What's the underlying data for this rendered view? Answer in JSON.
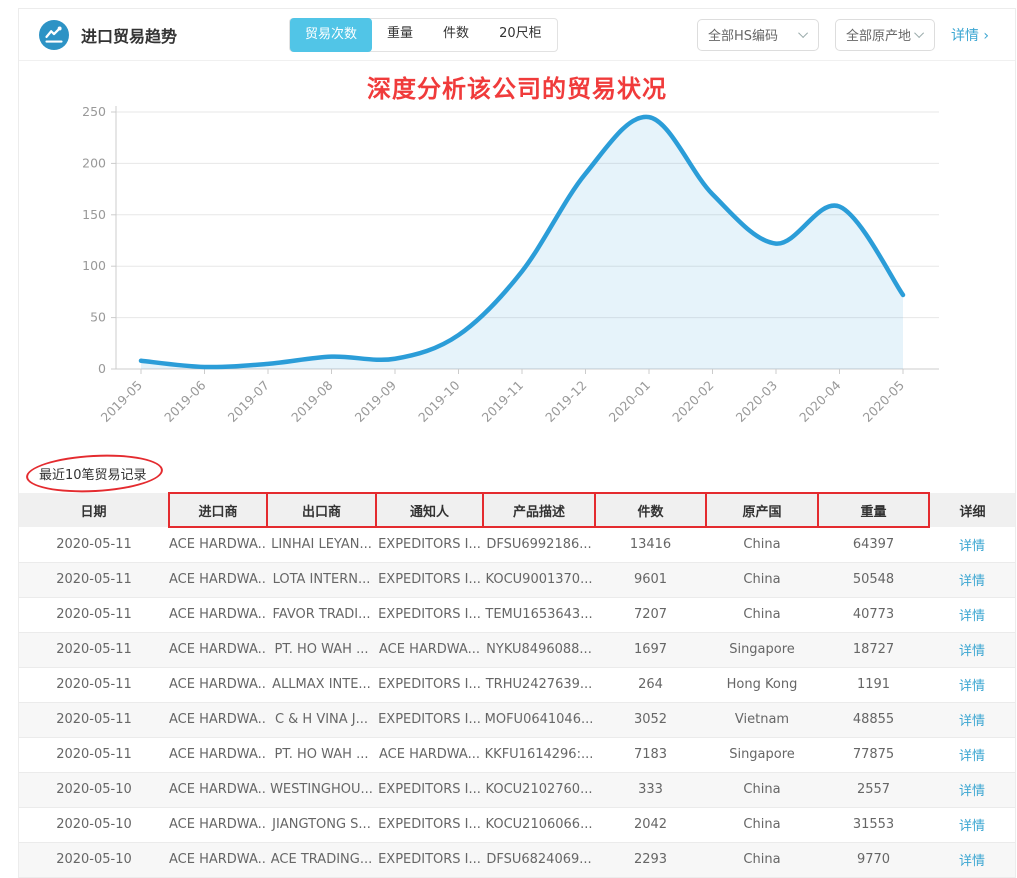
{
  "header": {
    "title": "进口贸易趋势",
    "tabs": [
      {
        "label": "贸易次数",
        "active": true
      },
      {
        "label": "重量",
        "active": false
      },
      {
        "label": "件数",
        "active": false
      },
      {
        "label": "20尺柜",
        "active": false
      }
    ],
    "filters": [
      {
        "label": "全部HS编码"
      },
      {
        "label": "全部原产地"
      }
    ],
    "detail_link": "详情",
    "detail_chevron": "›"
  },
  "annotations": {
    "headline": "深度分析该公司的贸易状况",
    "red_color": "#e42b2f"
  },
  "chart_data": {
    "type": "area",
    "title": "",
    "x": [
      "2019-05",
      "2019-06",
      "2019-07",
      "2019-08",
      "2019-09",
      "2019-10",
      "2019-11",
      "2019-12",
      "2020-01",
      "2020-02",
      "2020-03",
      "2020-04",
      "2020-05"
    ],
    "series": [
      {
        "name": "贸易次数",
        "values": [
          8,
          2,
          5,
          12,
          10,
          33,
          95,
          190,
          245,
          170,
          122,
          158,
          72
        ]
      }
    ],
    "xlabel": "",
    "ylabel": "",
    "ylim": [
      0,
      250
    ],
    "yticks": [
      0,
      50,
      100,
      150,
      200,
      250
    ],
    "grid": true,
    "legend_position": "none",
    "line_color": "#2b9dd8",
    "fill_color": "rgba(47,159,216,0.12)",
    "axis_color": "#ccc",
    "label_color": "#999"
  },
  "table": {
    "caption": "最近10笔贸易记录",
    "columns": [
      "日期",
      "进口商",
      "出口商",
      "通知人",
      "产品描述",
      "件数",
      "原产国",
      "重量",
      "详细"
    ],
    "detail_label": "详情",
    "rows": [
      [
        "2020-05-11",
        "ACE HARDWA...",
        "LINHAI LEYAN...",
        "EXPEDITORS I...",
        "DFSU6992186...",
        "13416",
        "China",
        "64397"
      ],
      [
        "2020-05-11",
        "ACE HARDWA...",
        "LOTA INTERN...",
        "EXPEDITORS I...",
        "KOCU9001370...",
        "9601",
        "China",
        "50548"
      ],
      [
        "2020-05-11",
        "ACE HARDWA...",
        "FAVOR TRADI...",
        "EXPEDITORS I...",
        "TEMU1653643...",
        "7207",
        "China",
        "40773"
      ],
      [
        "2020-05-11",
        "ACE HARDWA...",
        "PT. HO WAH ...",
        "ACE HARDWA...",
        "NYKU8496088...",
        "1697",
        "Singapore",
        "18727"
      ],
      [
        "2020-05-11",
        "ACE HARDWA...",
        "ALLMAX INTE...",
        "EXPEDITORS I...",
        "TRHU2427639...",
        "264",
        "Hong Kong",
        "1191"
      ],
      [
        "2020-05-11",
        "ACE HARDWA...",
        "C & H VINA J...",
        "EXPEDITORS I...",
        "MOFU0641046...",
        "3052",
        "Vietnam",
        "48855"
      ],
      [
        "2020-05-11",
        "ACE HARDWA...",
        "PT. HO WAH ...",
        "ACE HARDWA...",
        "KKFU1614296:...",
        "7183",
        "Singapore",
        "77875"
      ],
      [
        "2020-05-10",
        "ACE HARDWA...",
        "WESTINGHOU...",
        "EXPEDITORS I...",
        "KOCU2102760...",
        "333",
        "China",
        "2557"
      ],
      [
        "2020-05-10",
        "ACE HARDWA...",
        "JIANGTONG S...",
        "EXPEDITORS I...",
        "KOCU2106066...",
        "2042",
        "China",
        "31553"
      ],
      [
        "2020-05-10",
        "ACE HARDWA...",
        "ACE TRADING...",
        "EXPEDITORS I...",
        "DFSU6824069...",
        "2293",
        "China",
        "9770"
      ]
    ]
  }
}
